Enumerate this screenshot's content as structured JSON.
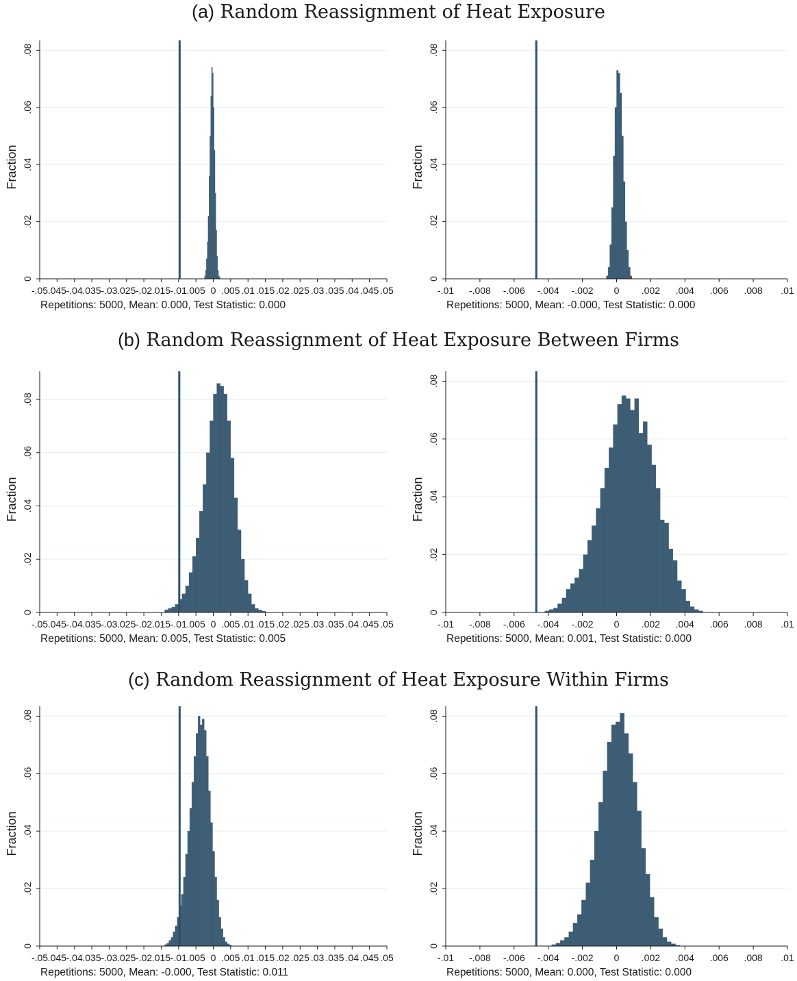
{
  "sections": [
    {
      "tag": "(a)",
      "text": "Random Reassignment of Heat Exposure"
    },
    {
      "tag": "(b)",
      "text": "Random Reassignment of Heat Exposure Between Firms"
    },
    {
      "tag": "(c)",
      "text": "Random Reassignment of Heat Exposure Within Firms"
    }
  ],
  "colors": {
    "bar": "#3d5d75",
    "line": "#2f5069",
    "grid": "#e9f0f4",
    "axis": "#1a1a1a"
  },
  "chart_data": [
    {
      "type": "bar",
      "section": "(a)",
      "ylabel": "Fraction",
      "caption": "Repetitions: 5000, Mean: 0.000, Test Statistic: 0.000",
      "xlim": [
        -0.05,
        0.05
      ],
      "ylim": [
        0,
        0.082
      ],
      "grid": true,
      "xticks": [
        -0.05,
        -0.045,
        -0.04,
        -0.035,
        -0.03,
        -0.025,
        -0.02,
        -0.015,
        -0.01,
        -0.005,
        0,
        0.005,
        0.01,
        0.015,
        0.02,
        0.025,
        0.03,
        0.035,
        0.04,
        0.045,
        0.05
      ],
      "xtick_labels": [
        "-.05",
        ".045",
        "-.04",
        ".035",
        "-.03",
        ".025",
        "-.02",
        ".015",
        "-.01",
        ".005",
        "0",
        ".005",
        ".01",
        ".015",
        ".02",
        ".025",
        ".03",
        ".035",
        ".04",
        ".045",
        ".05"
      ],
      "yticks": [
        0,
        0.02,
        0.04,
        0.06,
        0.08
      ],
      "ytick_labels": [
        "0",
        ".02",
        ".04",
        ".06",
        ".08"
      ],
      "vline": -0.0097,
      "bin_start": -0.0025,
      "bin_width": 0.00025,
      "values": [
        0.001,
        0.003,
        0.007,
        0.013,
        0.022,
        0.036,
        0.05,
        0.064,
        0.074,
        0.072,
        0.06,
        0.045,
        0.03,
        0.017,
        0.008,
        0.003,
        0.001,
        0.0005
      ]
    },
    {
      "type": "bar",
      "section": "(a)",
      "ylabel": "Fraction",
      "caption": "Repetitions: 5000, Mean: -0.000, Test Statistic: 0.000",
      "xlim": [
        -0.01,
        0.01
      ],
      "ylim": [
        0,
        0.082
      ],
      "grid": true,
      "xticks": [
        -0.01,
        -0.008,
        -0.006,
        -0.004,
        -0.002,
        0,
        0.002,
        0.004,
        0.006,
        0.008,
        0.01
      ],
      "xtick_labels": [
        "-.01",
        "-.008",
        "-.006",
        "-.004",
        "-.002",
        "0",
        ".002",
        ".004",
        ".006",
        ".008",
        ".01"
      ],
      "yticks": [
        0,
        0.02,
        0.04,
        0.06,
        0.08
      ],
      "ytick_labels": [
        "0",
        ".02",
        ".04",
        ".06",
        ".08"
      ],
      "vline": -0.0047,
      "bin_start": -0.0006,
      "bin_width": 0.0001,
      "values": [
        0.001,
        0.004,
        0.012,
        0.025,
        0.043,
        0.06,
        0.073,
        0.072,
        0.065,
        0.05,
        0.034,
        0.02,
        0.01,
        0.004,
        0.001
      ]
    },
    {
      "type": "bar",
      "section": "(b)",
      "ylabel": "Fraction",
      "caption": "Repetitions: 5000, Mean: 0.005, Test Statistic: 0.005",
      "xlim": [
        -0.05,
        0.05
      ],
      "ylim": [
        0,
        0.089
      ],
      "grid": true,
      "xticks": [
        -0.05,
        -0.045,
        -0.04,
        -0.035,
        -0.03,
        -0.025,
        -0.02,
        -0.015,
        -0.01,
        -0.005,
        0,
        0.005,
        0.01,
        0.015,
        0.02,
        0.025,
        0.03,
        0.035,
        0.04,
        0.045,
        0.05
      ],
      "xtick_labels": [
        "-.05",
        ".045",
        "-.04",
        ".035",
        "-.03",
        ".025",
        "-.02",
        ".015",
        "-.01",
        ".005",
        "0",
        ".005",
        ".01",
        ".015",
        ".02",
        ".025",
        ".03",
        ".035",
        ".04",
        ".045",
        ".05"
      ],
      "yticks": [
        0,
        0.02,
        0.04,
        0.06,
        0.08
      ],
      "ytick_labels": [
        "0",
        ".02",
        ".04",
        ".06",
        ".08"
      ],
      "vline": -0.0098,
      "bin_start": -0.014,
      "bin_width": 0.001,
      "values": [
        0.001,
        0.0015,
        0.002,
        0.003,
        0.005,
        0.007,
        0.01,
        0.015,
        0.021,
        0.028,
        0.038,
        0.048,
        0.06,
        0.072,
        0.082,
        0.086,
        0.085,
        0.082,
        0.072,
        0.058,
        0.043,
        0.031,
        0.02,
        0.012,
        0.007,
        0.003,
        0.0015,
        0.001,
        0.0005
      ]
    },
    {
      "type": "bar",
      "section": "(b)",
      "ylabel": "Fraction",
      "caption": "Repetitions: 5000, Mean: 0.001, Test Statistic: 0.000",
      "xlim": [
        -0.01,
        0.01
      ],
      "ylim": [
        0,
        0.082
      ],
      "grid": true,
      "xticks": [
        -0.01,
        -0.008,
        -0.006,
        -0.004,
        -0.002,
        0,
        0.002,
        0.004,
        0.006,
        0.008,
        0.01
      ],
      "xtick_labels": [
        "-.01",
        "-.008",
        "-.006",
        "-.004",
        "-.002",
        "0",
        ".002",
        ".004",
        ".006",
        ".008",
        ".01"
      ],
      "yticks": [
        0,
        0.02,
        0.04,
        0.06,
        0.08
      ],
      "ytick_labels": [
        "0",
        ".02",
        ".04",
        ".06",
        ".08"
      ],
      "vline": -0.0047,
      "bin_start": -0.0042,
      "bin_width": 0.00025,
      "values": [
        0.0005,
        0.001,
        0.0015,
        0.003,
        0.005,
        0.008,
        0.01,
        0.012,
        0.015,
        0.02,
        0.025,
        0.03,
        0.036,
        0.043,
        0.05,
        0.057,
        0.065,
        0.072,
        0.075,
        0.074,
        0.07,
        0.074,
        0.062,
        0.066,
        0.058,
        0.051,
        0.043,
        0.032,
        0.031,
        0.022,
        0.018,
        0.011,
        0.008,
        0.004,
        0.002,
        0.001,
        0.0005
      ]
    },
    {
      "type": "bar",
      "section": "(c)",
      "ylabel": "Fraction",
      "caption": "Repetitions: 5000, Mean: -0.000, Test Statistic: 0.011",
      "xlim": [
        -0.05,
        0.05
      ],
      "ylim": [
        0,
        0.082
      ],
      "grid": true,
      "xticks": [
        -0.05,
        -0.045,
        -0.04,
        -0.035,
        -0.03,
        -0.025,
        -0.02,
        -0.015,
        -0.01,
        -0.005,
        0,
        0.005,
        0.01,
        0.015,
        0.02,
        0.025,
        0.03,
        0.035,
        0.04,
        0.045,
        0.05
      ],
      "xtick_labels": [
        "-.05",
        ".045",
        "-.04",
        ".035",
        "-.03",
        ".025",
        "-.02",
        ".015",
        "-.01",
        ".005",
        "0",
        ".005",
        ".01",
        ".015",
        ".02",
        ".025",
        ".03",
        ".035",
        ".04",
        ".045",
        ".05"
      ],
      "yticks": [
        0,
        0.02,
        0.04,
        0.06,
        0.08
      ],
      "ytick_labels": [
        "0",
        ".02",
        ".04",
        ".06",
        ".08"
      ],
      "vline": -0.0097,
      "bin_start": -0.014,
      "bin_width": 0.0006,
      "values": [
        0.0005,
        0.001,
        0.002,
        0.003,
        0.005,
        0.007,
        0.01,
        0.014,
        0.018,
        0.024,
        0.032,
        0.04,
        0.048,
        0.057,
        0.066,
        0.074,
        0.08,
        0.077,
        0.079,
        0.075,
        0.066,
        0.054,
        0.043,
        0.033,
        0.024,
        0.016,
        0.01,
        0.006,
        0.003,
        0.0015,
        0.0008,
        0.0004
      ]
    },
    {
      "type": "bar",
      "section": "(c)",
      "ylabel": "Fraction",
      "caption": "Repetitions: 5000, Mean: 0.000, Test Statistic: 0.000",
      "xlim": [
        -0.01,
        0.01
      ],
      "ylim": [
        0,
        0.082
      ],
      "grid": true,
      "xticks": [
        -0.01,
        -0.008,
        -0.006,
        -0.004,
        -0.002,
        0,
        0.002,
        0.004,
        0.006,
        0.008,
        0.01
      ],
      "xtick_labels": [
        "-.01",
        "-.008",
        "-.006",
        "-.004",
        "-.002",
        "0",
        ".002",
        ".004",
        ".006",
        ".008",
        ".01"
      ],
      "yticks": [
        0,
        0.02,
        0.04,
        0.06,
        0.08
      ],
      "ytick_labels": [
        "0",
        ".02",
        ".04",
        ".06",
        ".08"
      ],
      "vline": -0.0047,
      "bin_start": -0.0038,
      "bin_width": 0.00025,
      "values": [
        0.0005,
        0.001,
        0.002,
        0.003,
        0.005,
        0.008,
        0.011,
        0.016,
        0.022,
        0.03,
        0.04,
        0.05,
        0.061,
        0.071,
        0.077,
        0.078,
        0.081,
        0.074,
        0.067,
        0.057,
        0.047,
        0.034,
        0.025,
        0.017,
        0.01,
        0.006,
        0.003,
        0.0015,
        0.0008,
        0.0003
      ]
    }
  ]
}
